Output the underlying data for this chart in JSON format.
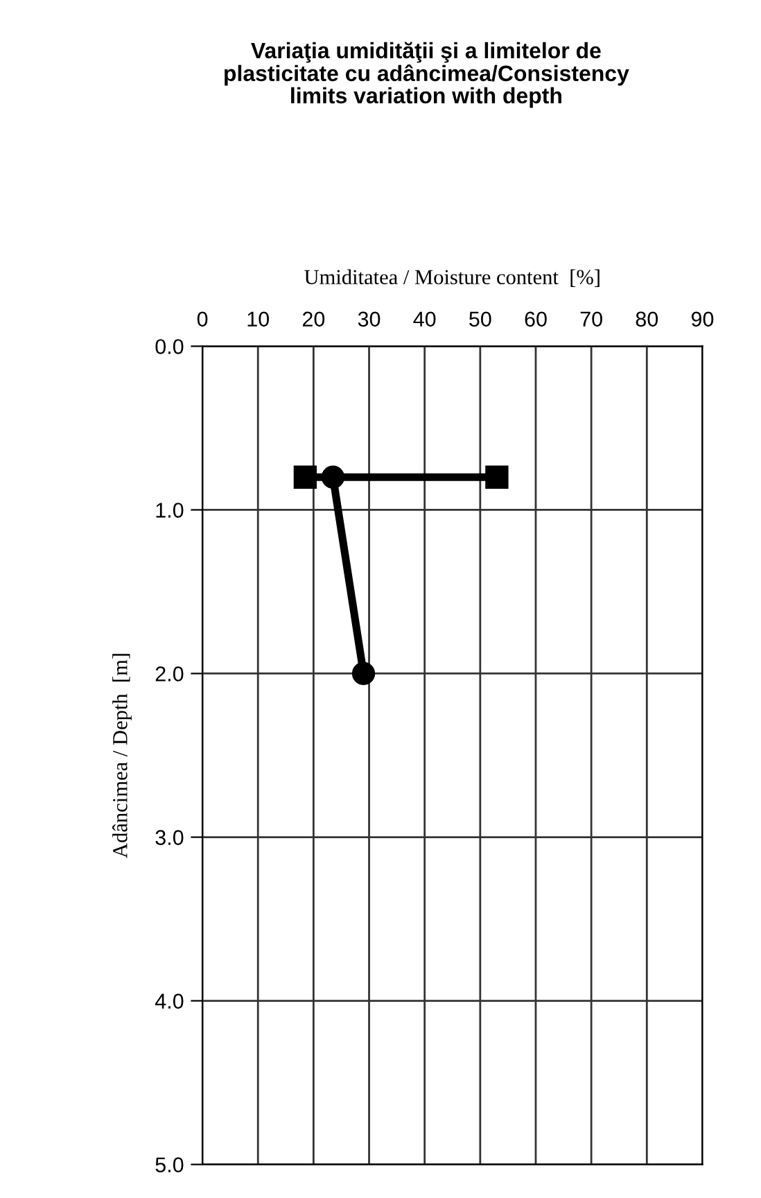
{
  "chart_data": {
    "type": "line",
    "title": "Variaţia umidităţii şi a limitelor de\nplasticitate cu adâncimea/Consistency\nlimits variation with depth",
    "xlabel": "Umiditatea / Moisture content  [%]",
    "ylabel": "Adâncimea / Depth  [m]",
    "xlim": [
      0,
      90
    ],
    "xticks": [
      0,
      10,
      20,
      30,
      40,
      50,
      60,
      70,
      80,
      90
    ],
    "ylim": [
      5.0,
      0.0
    ],
    "yticks": [
      {
        "value": 0,
        "label": "0.0"
      },
      {
        "value": 1,
        "label": "1.0"
      },
      {
        "value": 2,
        "label": "2.0"
      },
      {
        "value": 3,
        "label": "3.0"
      },
      {
        "value": 4,
        "label": "4.0"
      },
      {
        "value": 5,
        "label": "5.0"
      }
    ],
    "grid": true,
    "line_style": "solid",
    "series": [
      {
        "color": "#000000",
        "marker": "square",
        "x": [
          18.5,
          53
        ],
        "values": [
          0.8,
          0.8
        ]
      },
      {
        "color": "#000000",
        "marker": "circle",
        "x": [
          23.5,
          29
        ],
        "values": [
          0.8,
          2.0
        ]
      }
    ]
  }
}
